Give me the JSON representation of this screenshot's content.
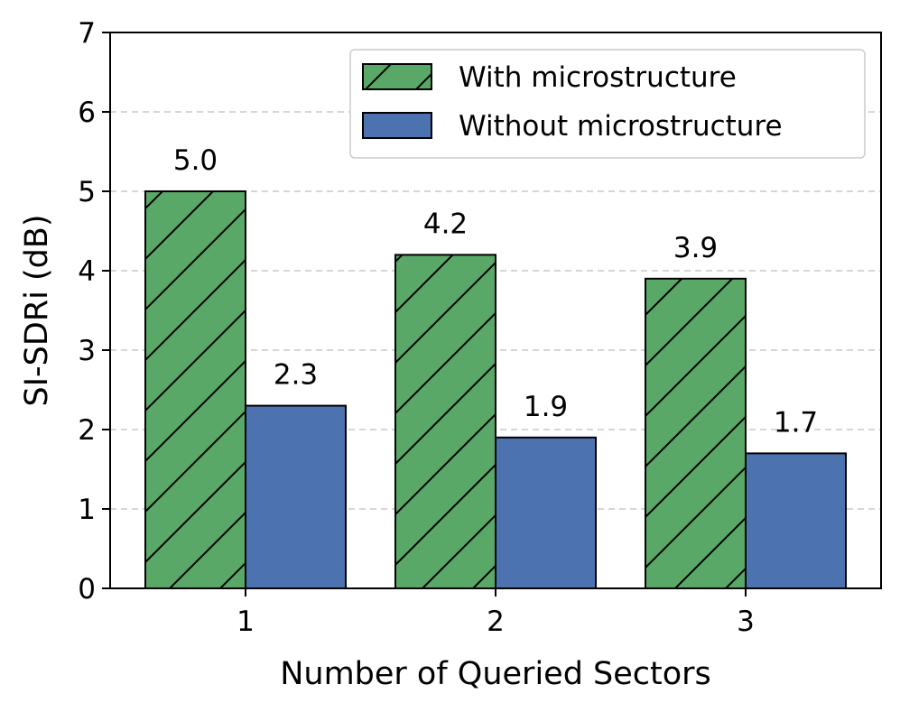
{
  "chart_data": {
    "type": "bar",
    "categories": [
      "1",
      "2",
      "3"
    ],
    "series": [
      {
        "name": "With microstructure",
        "values": [
          5.0,
          4.2,
          3.9
        ],
        "color": "#59a867",
        "hatch": "diagonal"
      },
      {
        "name": "Without microstructure",
        "values": [
          2.3,
          1.9,
          1.7
        ],
        "color": "#4c72b0",
        "hatch": "none"
      }
    ],
    "data_labels": [
      [
        "5.0",
        "4.2",
        "3.9"
      ],
      [
        "2.3",
        "1.9",
        "1.7"
      ]
    ],
    "title": "",
    "xlabel": "Number of Queried Sectors",
    "ylabel": "SI-SDRi (dB)",
    "ylim": [
      0,
      7
    ],
    "yticks": [
      "0",
      "1",
      "2",
      "3",
      "4",
      "5",
      "6",
      "7"
    ],
    "grid": "y-dashed",
    "legend": "top-right"
  }
}
